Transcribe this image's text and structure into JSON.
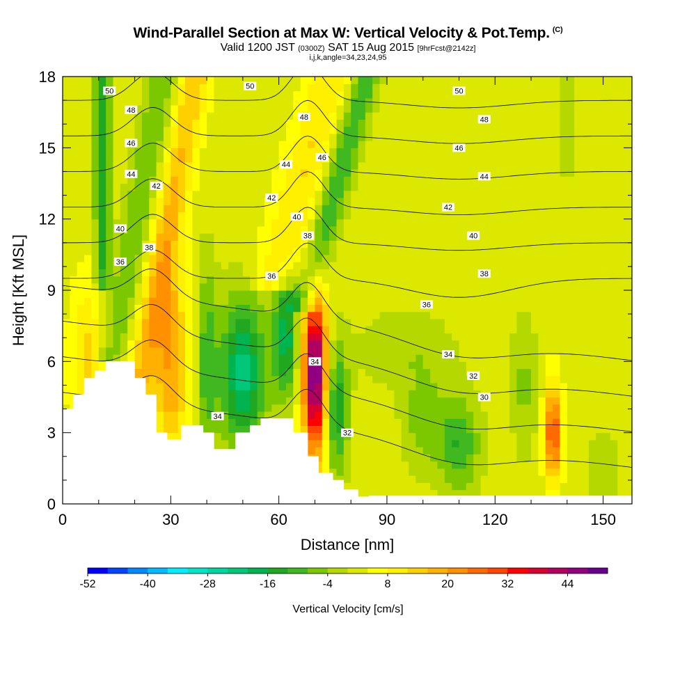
{
  "title": "Wind-Parallel Section at Max W: Vertical Velocity & Pot.Temp.",
  "title_mark": "(C)",
  "subtitle": {
    "lead": "Valid 1200 JST",
    "utc": "(0300Z)",
    "date": "SAT 15 Aug 2015",
    "fcst": "[9hrFcst@2142z]"
  },
  "params": "i,j,k,angle=34,23,24,95",
  "chart_data": {
    "type": "heatmap",
    "xlabel": "Distance [nm]",
    "ylabel": "Height [Kft MSL]",
    "xlim": [
      0,
      158
    ],
    "ylim": [
      0,
      18
    ],
    "x_ticks": [
      "0",
      "30",
      "60",
      "90",
      "120",
      "150"
    ],
    "y_ticks": [
      "0",
      "3",
      "6",
      "9",
      "12",
      "15",
      "18"
    ],
    "colorbar": {
      "title": "Vertical Velocity [cm/s]",
      "min": -52,
      "max": 52,
      "step": 4,
      "tick_labels": [
        "-52",
        "-40",
        "-28",
        "-16",
        "-4",
        "8",
        "20",
        "32",
        "44"
      ],
      "colors": [
        "#0000ff",
        "#0044ff",
        "#0088ff",
        "#00bbff",
        "#00eeff",
        "#00e5c8",
        "#00d7a0",
        "#00c878",
        "#00b450",
        "#20a820",
        "#40b820",
        "#7cc800",
        "#b4d800",
        "#dce800",
        "#ffff00",
        "#fff000",
        "#ffd000",
        "#ffb000",
        "#ff9000",
        "#ff6a00",
        "#ff4400",
        "#ff0000",
        "#d80030",
        "#b00060",
        "#900080",
        "#6a0090"
      ]
    },
    "contours": {
      "field": "potential temperature",
      "levels": [
        "30",
        "32",
        "34",
        "36",
        "38",
        "40",
        "42",
        "44",
        "46",
        "48",
        "50"
      ]
    },
    "contour_labels": [
      {
        "text": "50",
        "x": 13,
        "y": 17.4
      },
      {
        "text": "50",
        "x": 52,
        "y": 17.6
      },
      {
        "text": "50",
        "x": 110,
        "y": 17.4
      },
      {
        "text": "48",
        "x": 19,
        "y": 16.6
      },
      {
        "text": "48",
        "x": 67,
        "y": 16.3
      },
      {
        "text": "48",
        "x": 117,
        "y": 16.2
      },
      {
        "text": "46",
        "x": 19,
        "y": 15.2
      },
      {
        "text": "46",
        "x": 72,
        "y": 14.6
      },
      {
        "text": "46",
        "x": 110,
        "y": 15.0
      },
      {
        "text": "44",
        "x": 19,
        "y": 13.9
      },
      {
        "text": "44",
        "x": 62,
        "y": 14.3
      },
      {
        "text": "44",
        "x": 117,
        "y": 13.8
      },
      {
        "text": "42",
        "x": 26,
        "y": 13.4
      },
      {
        "text": "42",
        "x": 58,
        "y": 12.9
      },
      {
        "text": "42",
        "x": 107,
        "y": 12.5
      },
      {
        "text": "40",
        "x": 16,
        "y": 11.6
      },
      {
        "text": "40",
        "x": 65,
        "y": 12.1
      },
      {
        "text": "40",
        "x": 114,
        "y": 11.3
      },
      {
        "text": "38",
        "x": 24,
        "y": 10.8
      },
      {
        "text": "38",
        "x": 68,
        "y": 11.3
      },
      {
        "text": "38",
        "x": 117,
        "y": 9.7
      },
      {
        "text": "36",
        "x": 16,
        "y": 10.2
      },
      {
        "text": "36",
        "x": 58,
        "y": 9.6
      },
      {
        "text": "36",
        "x": 101,
        "y": 8.4
      },
      {
        "text": "34",
        "x": 43,
        "y": 3.7
      },
      {
        "text": "34",
        "x": 70,
        "y": 6.0
      },
      {
        "text": "34",
        "x": 107,
        "y": 6.3
      },
      {
        "text": "32",
        "x": 79,
        "y": 3.0
      },
      {
        "text": "32",
        "x": 114,
        "y": 5.4
      },
      {
        "text": "30",
        "x": 117,
        "y": 4.5
      }
    ]
  }
}
